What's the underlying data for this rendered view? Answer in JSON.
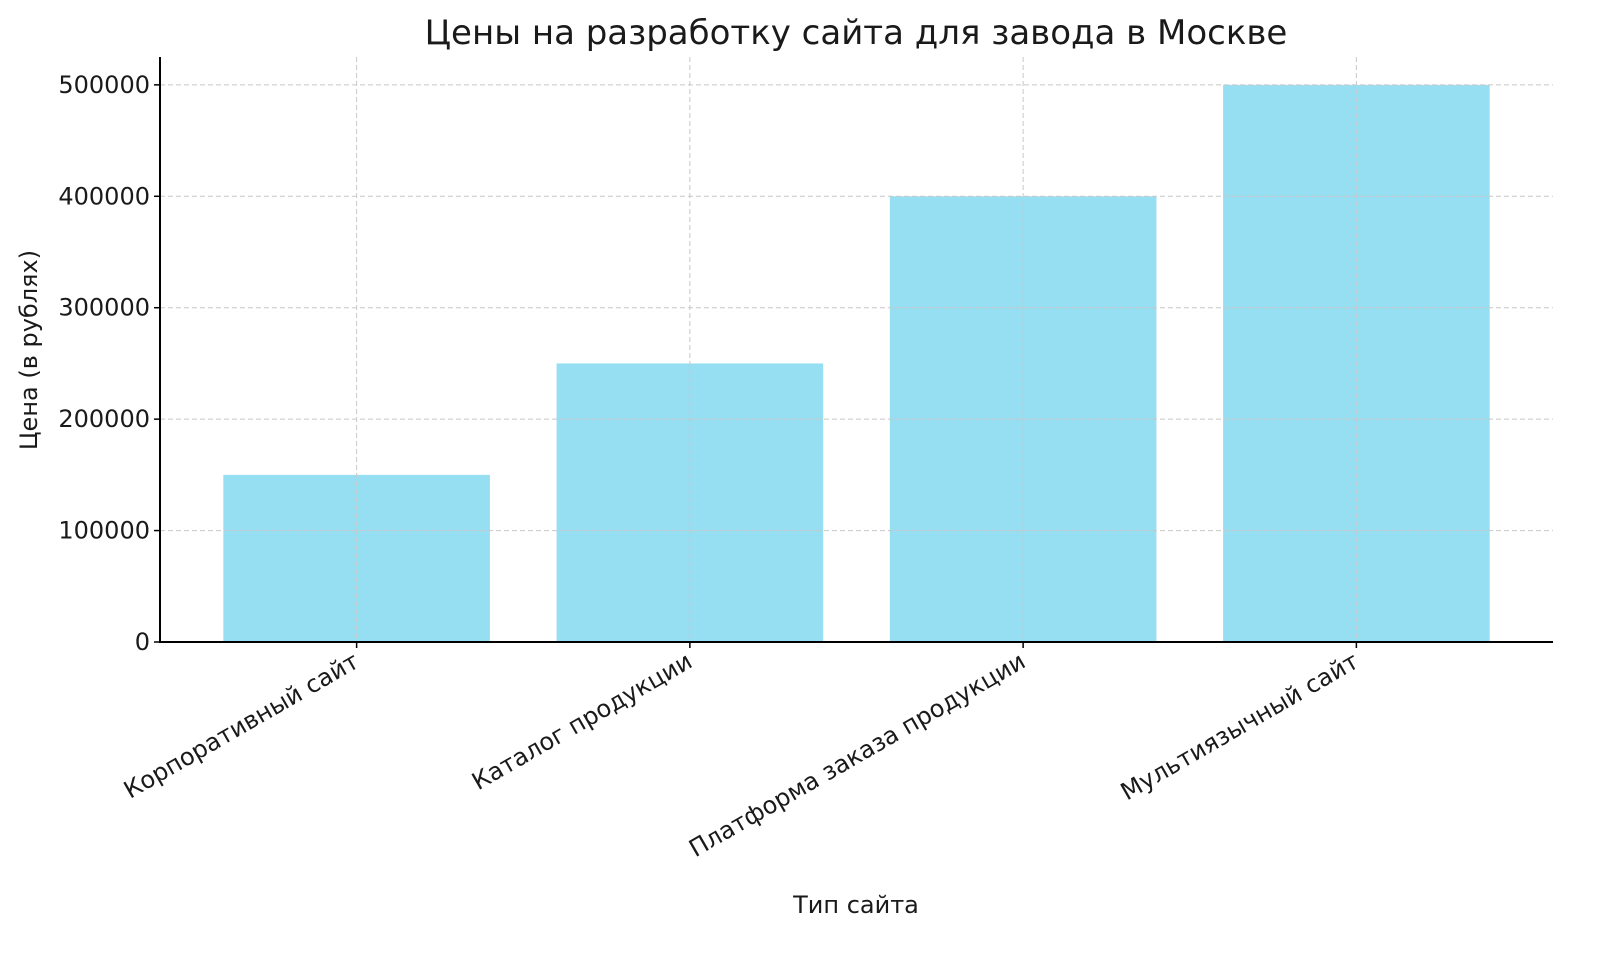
{
  "chart_data": {
    "type": "bar",
    "title": "Цены на разработку сайта для завода в Москве",
    "xlabel": "Тип сайта",
    "ylabel": "Цена (в рублях)",
    "categories": [
      "Корпоративный сайт",
      "Каталог продукции",
      "Платформа заказа продукции",
      "Мультиязычный сайт"
    ],
    "values": [
      150000,
      250000,
      400000,
      500000
    ],
    "ylim": [
      0,
      525000
    ],
    "yticks": [
      0,
      100000,
      200000,
      300000,
      400000,
      500000
    ],
    "grid": true,
    "bar_color": "#96dff3",
    "grid_color": "#c8c8c8",
    "xtick_rotation": 30
  }
}
